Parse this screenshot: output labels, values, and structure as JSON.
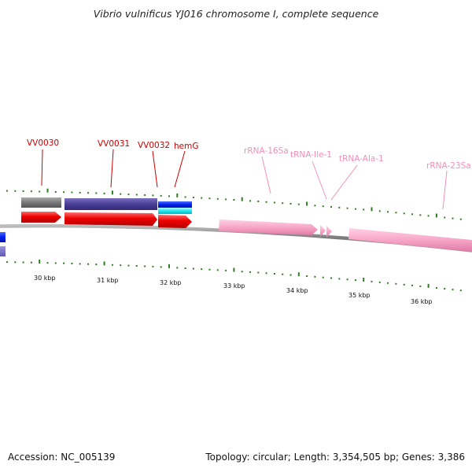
{
  "title": "Vibrio vulnificus YJ016 chromosome I, complete sequence",
  "footer": {
    "accession": "Accession: NC_005139",
    "summary": "Topology: circular; Length: 3,354,505 bp; Genes: 3,386"
  },
  "colors": {
    "gene_label": "#cc0000",
    "rna_label": "#f28fb8",
    "tick": "#2e7d1f",
    "backbone": "#888888",
    "cds_forward": "#ee0000",
    "rna_feature": "#f7a6c8"
  },
  "gene_labels": [
    "VV0030",
    "VV0031",
    "VV0032",
    "hemG"
  ],
  "rna_labels": [
    "rRNA-16Sa",
    "tRNA-Ile-1",
    "tRNA-Ala-1",
    "rRNA-23Sa"
  ],
  "scale_labels": [
    "30 kbp",
    "31 kbp",
    "32 kbp",
    "33 kbp",
    "34 kbp",
    "35 kbp",
    "36 kbp"
  ]
}
